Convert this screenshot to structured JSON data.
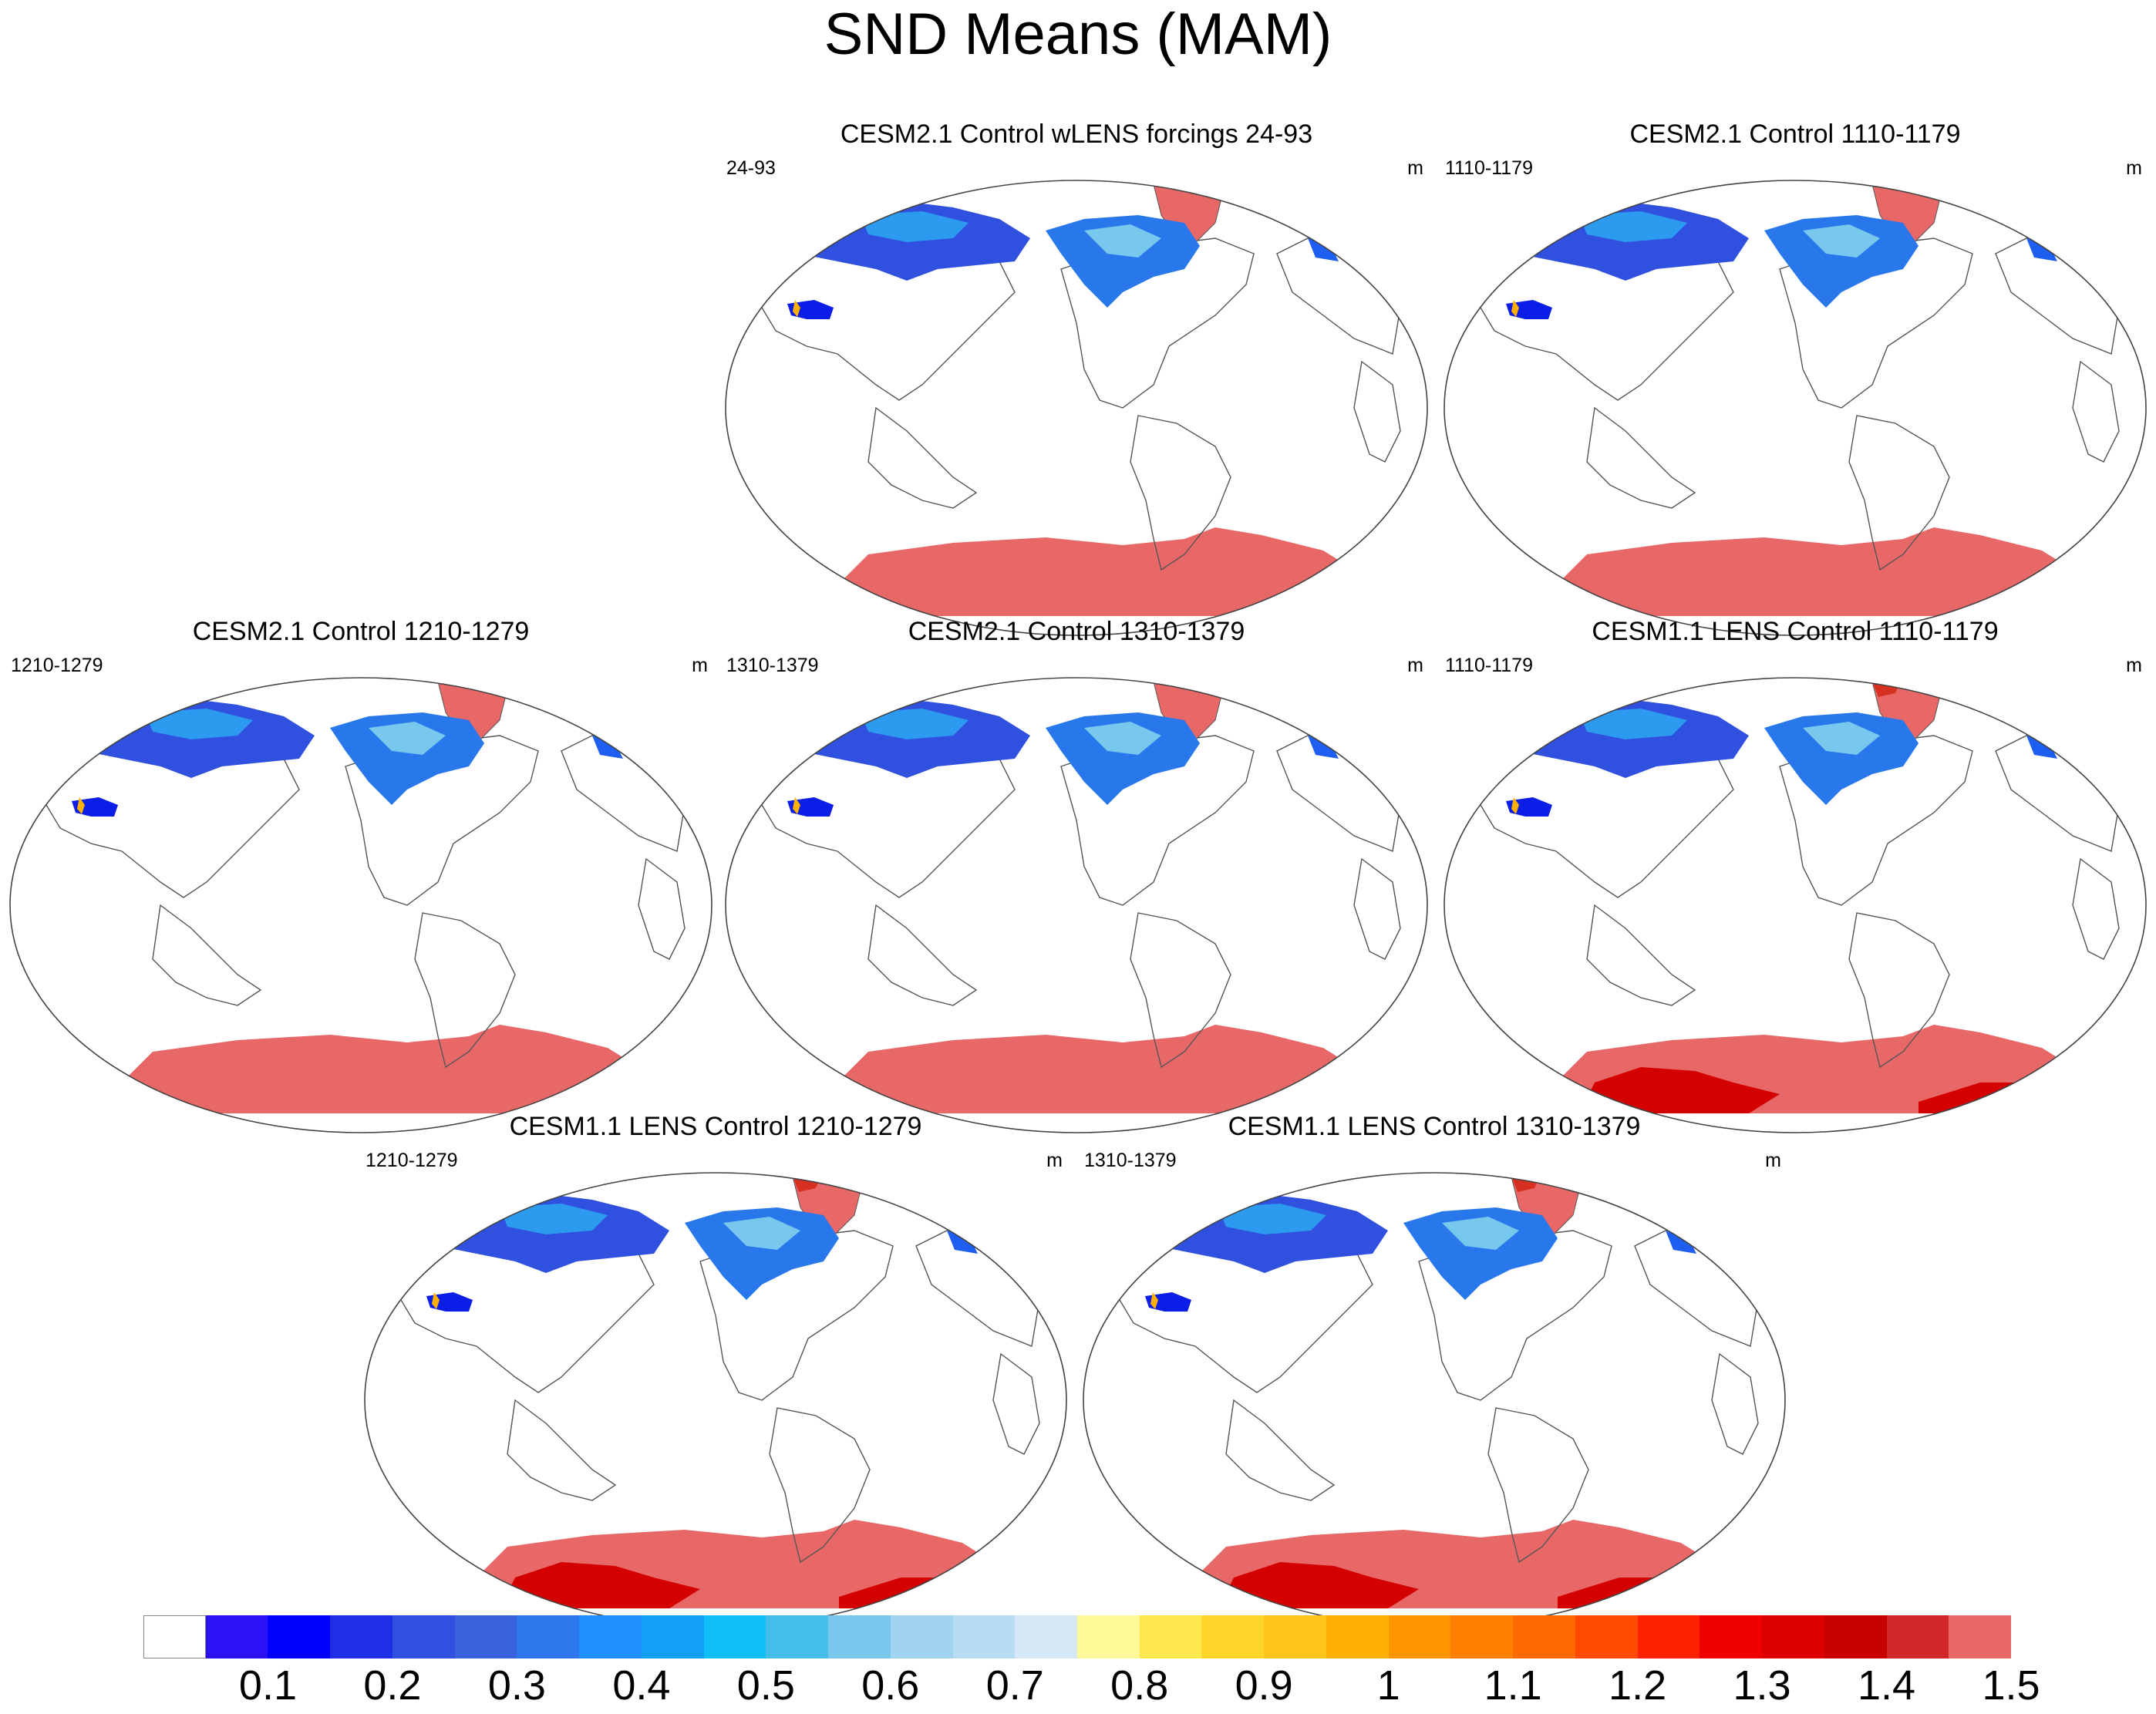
{
  "title": "SND Means (MAM)",
  "units": "m",
  "panels": [
    {
      "title": "CESM2.1 Control wLENS forcings 24-93",
      "left_label": "24-93",
      "right_label": "m",
      "variant": "cesm2"
    },
    {
      "title": "CESM2.1 Control 1110-1179",
      "left_label": "1110-1179",
      "right_label": "m",
      "variant": "cesm2"
    },
    {
      "title": "CESM2.1 Control 1210-1279",
      "left_label": "1210-1279",
      "right_label": "m",
      "variant": "cesm2"
    },
    {
      "title": "CESM2.1 Control 1310-1379",
      "left_label": "1310-1379",
      "right_label": "m",
      "variant": "cesm2"
    },
    {
      "title": "CESM1.1 LENS Control 1110-1179",
      "left_label": "1110-1179",
      "right_label": "m",
      "variant": "cesm1"
    },
    {
      "title": "CESM1.1 LENS Control 1210-1279",
      "left_label": "1210-1279",
      "right_label": "m",
      "variant": "cesm1"
    },
    {
      "title": "CESM1.1 LENS Control 1310-1379",
      "left_label": "1310-1379",
      "right_label": "m",
      "variant": "cesm1"
    }
  ],
  "colorbar": {
    "labels": [
      "0.1",
      "0.2",
      "0.3",
      "0.4",
      "0.5",
      "0.6",
      "0.7",
      "0.8",
      "0.9",
      "1",
      "1.1",
      "1.2",
      "1.3",
      "1.4",
      "1.5"
    ],
    "colors": [
      "#ffffff",
      "#2a12f5",
      "#0000ff",
      "#1f2fe8",
      "#3050e0",
      "#3a62dc",
      "#2c78ec",
      "#1e90ff",
      "#12a0f7",
      "#10bef8",
      "#44bde8",
      "#78c8ee",
      "#a0d4f0",
      "#b8dcf4",
      "#d6e8f6",
      "#fff99a",
      "#ffe84e",
      "#ffd52a",
      "#ffc41a",
      "#ffb000",
      "#ff9600",
      "#ff8000",
      "#ff6a00",
      "#ff4a00",
      "#ff2200",
      "#f00000",
      "#dc0000",
      "#c80000",
      "#d02828",
      "#e86868"
    ]
  }
}
